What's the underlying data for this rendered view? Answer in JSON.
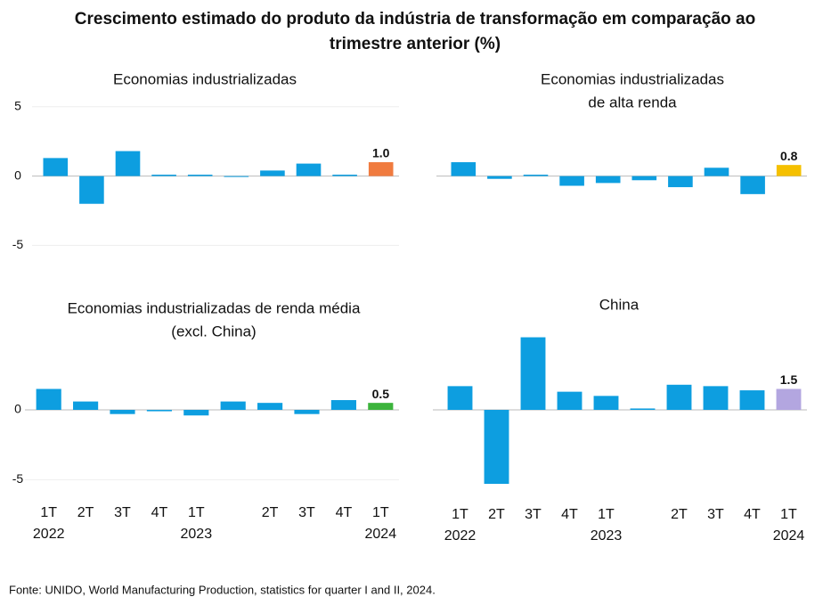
{
  "title": [
    "Crescimento estimado do produto da indústria de transformação em comparação ao",
    "trimestre anterior (%)"
  ],
  "source": "Fonte: UNIDO, World Manufacturing Production, statistics for quarter I and II, 2024.",
  "chart_data": [
    {
      "type": "bar",
      "title": [
        "Economias industrializadas"
      ],
      "values": [
        1.3,
        -2.0,
        1.8,
        0.1,
        0.1,
        0.0,
        0.4,
        0.9,
        0.1,
        1.0
      ],
      "value_labels": [
        null,
        null,
        null,
        null,
        null,
        null,
        null,
        null,
        null,
        "1.0"
      ],
      "color": "#0d9ee0",
      "highlight_color": "#f07b3f",
      "ylim": [
        -6,
        5.5
      ],
      "yticks": [
        -5,
        0,
        5
      ]
    },
    {
      "type": "bar",
      "title": [
        "Economias industrializadas",
        "de alta renda"
      ],
      "values": [
        1.0,
        -0.2,
        0.1,
        -0.7,
        -0.5,
        -0.3,
        -0.8,
        0.6,
        -1.3,
        0.8
      ],
      "value_labels": [
        null,
        null,
        null,
        null,
        null,
        null,
        null,
        null,
        null,
        "0.8"
      ],
      "color": "#0d9ee0",
      "highlight_color": "#f5c000",
      "ylim": [
        -6,
        5.5
      ]
    },
    {
      "type": "bar",
      "title": [
        "Economias industrializadas de renda média",
        "(excl. China)"
      ],
      "categories": [
        "1T",
        "2T",
        "3T",
        "4T",
        "1T",
        null,
        "2T",
        "3T",
        "4T",
        "1T"
      ],
      "years": [
        "2022",
        null,
        null,
        null,
        "2023",
        null,
        null,
        null,
        null,
        "2024"
      ],
      "values": [
        1.5,
        0.6,
        -0.3,
        -0.1,
        -0.4,
        0.6,
        0.5,
        -0.3,
        0.7,
        0.5
      ],
      "value_labels": [
        null,
        null,
        null,
        null,
        null,
        null,
        null,
        null,
        null,
        "0.5"
      ],
      "color": "#0d9ee0",
      "highlight_color": "#3cb43c",
      "ylim": [
        -6,
        6
      ],
      "yticks": [
        -5,
        0
      ]
    },
    {
      "type": "bar",
      "title": [
        "China"
      ],
      "categories": [
        "1T",
        "2T",
        "3T",
        "4T",
        "1T",
        null,
        "2T",
        "3T",
        "4T",
        "1T"
      ],
      "years": [
        "2022",
        null,
        null,
        null,
        "2023",
        null,
        null,
        null,
        null,
        "2024"
      ],
      "values": [
        1.7,
        -5.3,
        5.2,
        1.3,
        1.0,
        0.1,
        1.8,
        1.7,
        1.4,
        1.5
      ],
      "value_labels": [
        null,
        null,
        null,
        null,
        null,
        null,
        null,
        null,
        null,
        "1.5"
      ],
      "color": "#0d9ee0",
      "highlight_color": "#b3a6e0",
      "ylim": [
        -6,
        6
      ]
    }
  ]
}
